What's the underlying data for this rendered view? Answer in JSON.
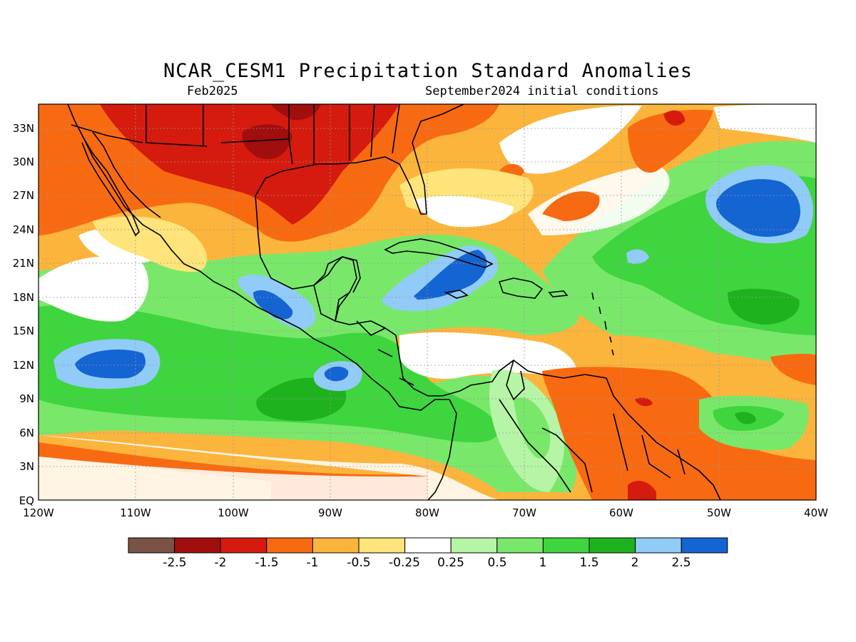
{
  "title": "NCAR_CESM1 Precipitation Standard Anomalies",
  "subtitle_left": "Feb2025",
  "subtitle_right": "September2024 initial conditions",
  "lat_labels": [
    "33N",
    "30N",
    "27N",
    "24N",
    "21N",
    "18N",
    "15N",
    "12N",
    "9N",
    "6N",
    "3N",
    "EQ"
  ],
  "lon_labels": [
    "120W",
    "110W",
    "100W",
    "90W",
    "80W",
    "70W",
    "60W",
    "50W",
    "40W"
  ],
  "colorbar": {
    "colors": [
      "#7a5246",
      "#a00e0e",
      "#d41b0e",
      "#f76a11",
      "#fbb43c",
      "#fee47b",
      "#ffffff",
      "#b6f5a6",
      "#79e86a",
      "#3ed53e",
      "#1fb21f",
      "#91cbf7",
      "#1464d2"
    ],
    "labels": [
      "-2.5",
      "-2",
      "-1.5",
      "-1",
      "-0.5",
      "-0.25",
      "0.25",
      "0.5",
      "1",
      "1.5",
      "2",
      "2.5"
    ]
  },
  "colors": {
    "ocean_background": "#f8c45a",
    "coastline": "#000000",
    "grid": "#999999"
  }
}
